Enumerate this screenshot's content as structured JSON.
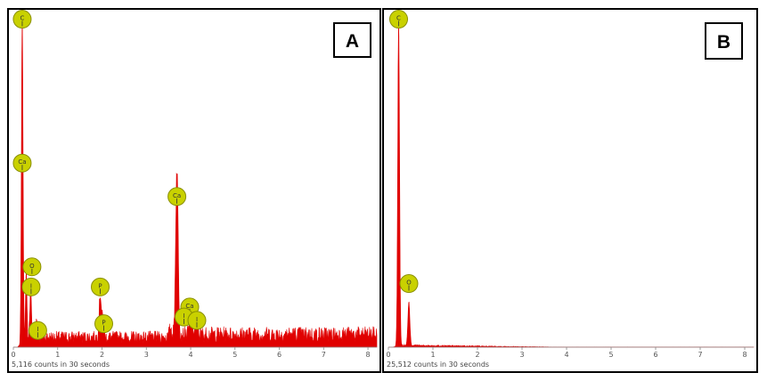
{
  "colors": {
    "spectrum": "#e00000",
    "marker_fill": "#c9d100",
    "marker_stroke": "#8a8f00",
    "frame": "#000000"
  },
  "chart_data": [
    {
      "type": "line",
      "panel_label": "A",
      "counts_label": "5,116 counts in 30 seconds",
      "xlim": [
        0,
        8.2
      ],
      "ylim": [
        0,
        1
      ],
      "xticks": [
        0,
        1,
        2,
        3,
        4,
        5,
        6,
        7,
        8
      ],
      "tick_labels": [
        "0",
        "1",
        "2",
        "3",
        "4",
        "5",
        "6",
        "7",
        "8"
      ],
      "background_level": 0.03,
      "peaks": [
        {
          "x": 0.2,
          "y": 0.98,
          "w": 0.018
        },
        {
          "x": 0.29,
          "y": 0.19,
          "w": 0.015
        },
        {
          "x": 0.39,
          "y": 0.13,
          "w": 0.02
        },
        {
          "x": 0.53,
          "y": 0.06,
          "w": 0.02
        },
        {
          "x": 1.96,
          "y": 0.13,
          "w": 0.025
        },
        {
          "x": 2.02,
          "y": 0.05,
          "w": 0.02
        },
        {
          "x": 3.55,
          "y": 0.02,
          "w": 0.02
        },
        {
          "x": 3.69,
          "y": 0.5,
          "w": 0.028
        },
        {
          "x": 4.01,
          "y": 0.07,
          "w": 0.03
        },
        {
          "x": 4.14,
          "y": 0.04,
          "w": 0.025
        }
      ],
      "markers": [
        {
          "label": "C",
          "x": 0.2,
          "y": 0.98
        },
        {
          "label": "Ca",
          "x": 0.2,
          "y": 0.55
        },
        {
          "label": "O",
          "x": 0.42,
          "y": 0.24
        },
        {
          "label": "I",
          "x": 0.4,
          "y": 0.18
        },
        {
          "label": "I",
          "x": 0.55,
          "y": 0.05
        },
        {
          "label": "P",
          "x": 1.96,
          "y": 0.18
        },
        {
          "label": "P",
          "x": 2.04,
          "y": 0.07
        },
        {
          "label": "Ca",
          "x": 3.69,
          "y": 0.45
        },
        {
          "label": "Ca",
          "x": 3.98,
          "y": 0.12
        },
        {
          "label": "I",
          "x": 3.85,
          "y": 0.09
        },
        {
          "label": "I",
          "x": 4.14,
          "y": 0.08
        }
      ]
    },
    {
      "type": "line",
      "panel_label": "B",
      "counts_label": "25,512 counts in 30 seconds",
      "xlim": [
        0,
        8.2
      ],
      "ylim": [
        0,
        1
      ],
      "xticks": [
        0,
        1,
        2,
        3,
        4,
        5,
        6,
        7,
        8
      ],
      "tick_labels": [
        "0",
        "1",
        "2",
        "3",
        "4",
        "5",
        "6",
        "7",
        "8"
      ],
      "background_level": 0.006,
      "peaks": [
        {
          "x": 0.23,
          "y": 0.98,
          "w": 0.02
        },
        {
          "x": 0.46,
          "y": 0.13,
          "w": 0.022
        }
      ],
      "markers": [
        {
          "label": "C",
          "x": 0.23,
          "y": 0.98
        },
        {
          "label": "O",
          "x": 0.46,
          "y": 0.19
        }
      ]
    }
  ]
}
